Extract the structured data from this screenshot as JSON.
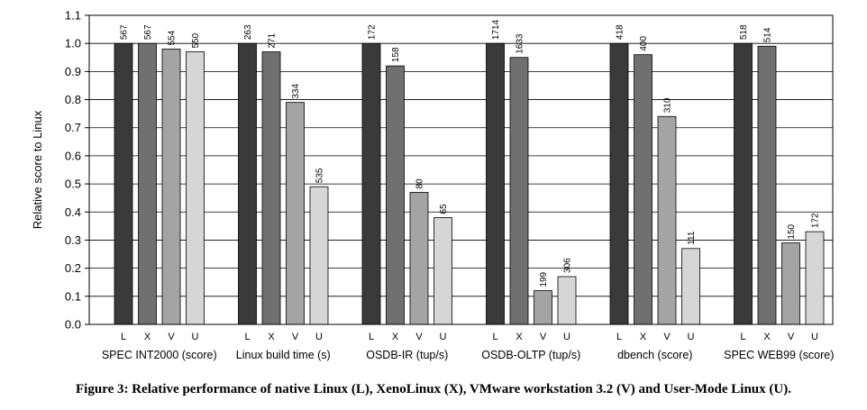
{
  "caption": "Figure 3: Relative performance of native Linux (L), XenoLinux (X), VMware workstation 3.2 (V) and User-Mode Linux (U).",
  "chart_data": {
    "type": "bar",
    "title": "",
    "xlabel": "",
    "ylabel": "Relative score to Linux",
    "ylim": [
      0,
      1.1
    ],
    "yticks": [
      "0.0",
      "0.1",
      "0.2",
      "0.3",
      "0.4",
      "0.5",
      "0.6",
      "0.7",
      "0.8",
      "0.9",
      "1.0",
      "1.1"
    ],
    "grid": "horizontal",
    "bar_letters": [
      "L",
      "X",
      "V",
      "U"
    ],
    "bar_colors": [
      "#3a3a3a",
      "#707070",
      "#a4a4a4",
      "#d6d6d6"
    ],
    "groups": [
      {
        "name": "SPEC INT2000 (score)",
        "values": [
          1.0,
          1.0,
          0.98,
          0.97
        ],
        "labels": [
          "567",
          "567",
          "554",
          "550"
        ]
      },
      {
        "name": "Linux build time (s)",
        "values": [
          1.0,
          0.97,
          0.79,
          0.49
        ],
        "labels": [
          "263",
          "271",
          "334",
          "535"
        ]
      },
      {
        "name": "OSDB-IR (tup/s)",
        "values": [
          1.0,
          0.92,
          0.47,
          0.38
        ],
        "labels": [
          "172",
          "158",
          "80",
          "65"
        ]
      },
      {
        "name": "OSDB-OLTP (tup/s)",
        "values": [
          1.0,
          0.95,
          0.12,
          0.17
        ],
        "labels": [
          "1714",
          "1633",
          "199",
          "306"
        ]
      },
      {
        "name": "dbench (score)",
        "values": [
          1.0,
          0.96,
          0.74,
          0.27
        ],
        "labels": [
          "418",
          "400",
          "310",
          "111"
        ]
      },
      {
        "name": "SPEC WEB99 (score)",
        "values": [
          1.0,
          0.99,
          0.29,
          0.33
        ],
        "labels": [
          "518",
          "514",
          "150",
          "172"
        ]
      }
    ]
  }
}
